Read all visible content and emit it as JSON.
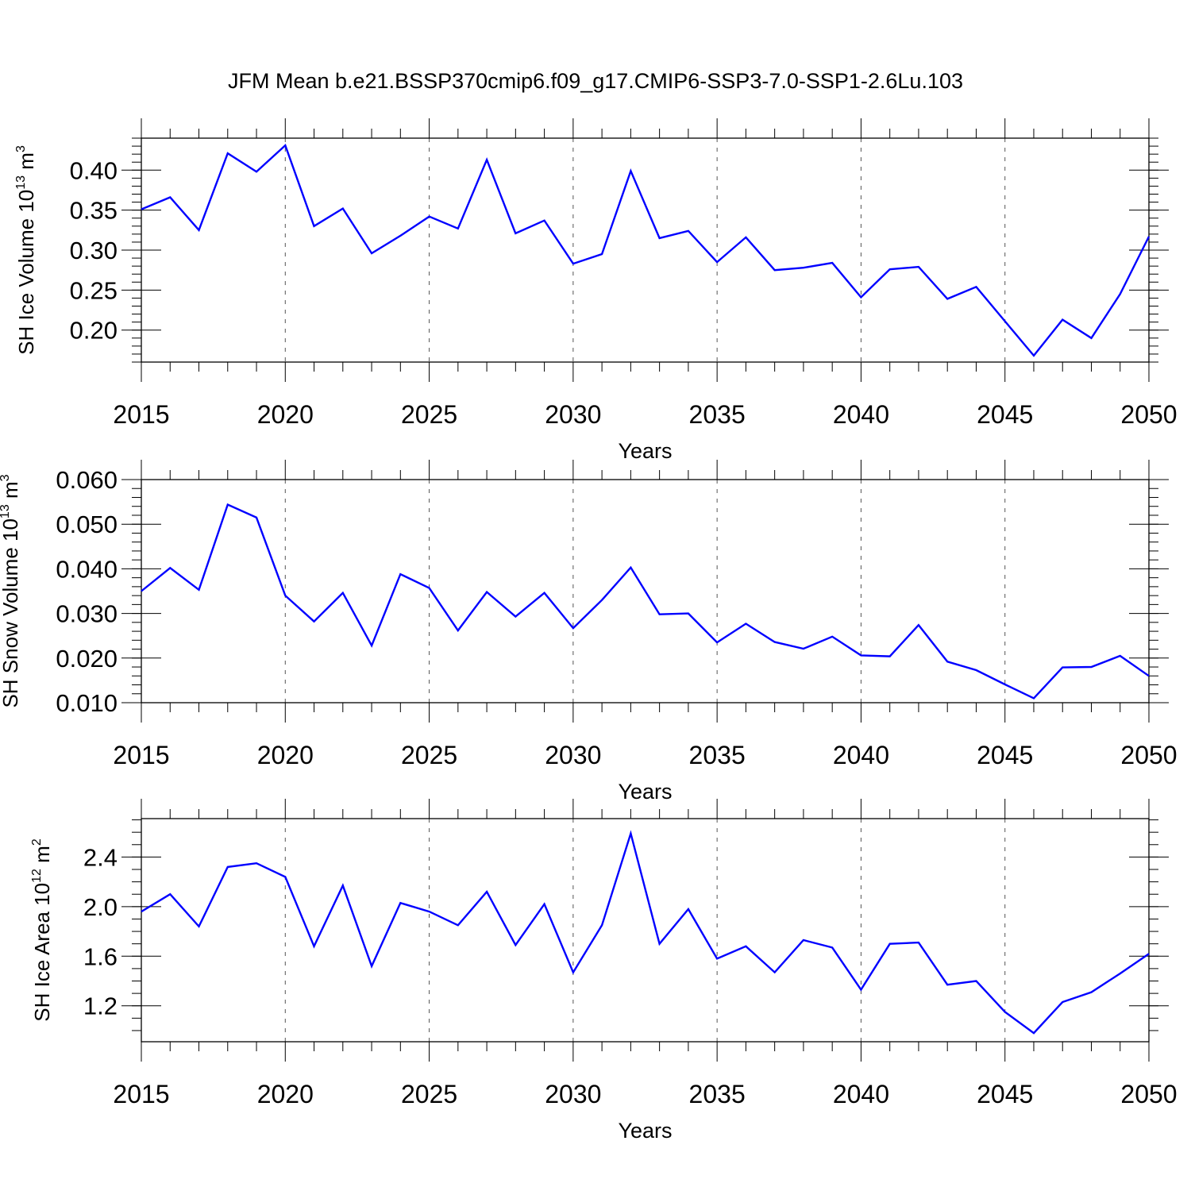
{
  "title": "JFM Mean b.e21.BSSP370cmip6.f09_g17.CMIP6-SSP3-7.0-SSP1-2.6Lu.103",
  "chart_data": [
    {
      "type": "line",
      "ylabel_main": "SH Ice Volume 10",
      "ylabel_exp": "13",
      "ylabel_unit": " m",
      "ylabel_unit_exp": "3",
      "xlabel": "Years",
      "xlim": [
        2015,
        2050
      ],
      "ylim": [
        0.16,
        0.44
      ],
      "yticks": [
        0.2,
        0.25,
        0.3,
        0.35,
        0.4
      ],
      "ytick_labels": [
        "0.20",
        "0.25",
        "0.30",
        "0.35",
        "0.40"
      ],
      "yminor_step": 0.01,
      "xticks": [
        2015,
        2020,
        2025,
        2030,
        2035,
        2040,
        2045,
        2050
      ],
      "xtick_labels": [
        "2015",
        "2020",
        "2025",
        "2030",
        "2035",
        "2040",
        "2045",
        "2050"
      ],
      "x": [
        2015,
        2016,
        2017,
        2018,
        2019,
        2020,
        2021,
        2022,
        2023,
        2024,
        2025,
        2026,
        2027,
        2028,
        2029,
        2030,
        2031,
        2032,
        2033,
        2034,
        2035,
        2036,
        2037,
        2038,
        2039,
        2040,
        2041,
        2042,
        2043,
        2044,
        2045,
        2046,
        2047,
        2048,
        2049,
        2050
      ],
      "values": [
        0.351,
        0.366,
        0.325,
        0.421,
        0.398,
        0.431,
        0.33,
        0.352,
        0.296,
        0.318,
        0.342,
        0.327,
        0.413,
        0.321,
        0.337,
        0.283,
        0.295,
        0.399,
        0.315,
        0.324,
        0.285,
        0.316,
        0.275,
        0.278,
        0.284,
        0.241,
        0.276,
        0.279,
        0.239,
        0.254,
        0.211,
        0.168,
        0.213,
        0.19,
        0.245,
        0.317
      ],
      "color": "#0000ff"
    },
    {
      "type": "line",
      "ylabel_main": "SH Snow Volume 10",
      "ylabel_exp": "13",
      "ylabel_unit": " m",
      "ylabel_unit_exp": "3",
      "xlabel": "Years",
      "xlim": [
        2015,
        2050
      ],
      "ylim": [
        0.01,
        0.06
      ],
      "yticks": [
        0.01,
        0.02,
        0.03,
        0.04,
        0.05,
        0.06
      ],
      "ytick_labels": [
        "0.010",
        "0.020",
        "0.030",
        "0.040",
        "0.050",
        "0.060"
      ],
      "yminor_step": 0.002,
      "xticks": [
        2015,
        2020,
        2025,
        2030,
        2035,
        2040,
        2045,
        2050
      ],
      "xtick_labels": [
        "2015",
        "2020",
        "2025",
        "2030",
        "2035",
        "2040",
        "2045",
        "2050"
      ],
      "x": [
        2015,
        2016,
        2017,
        2018,
        2019,
        2020,
        2021,
        2022,
        2023,
        2024,
        2025,
        2026,
        2027,
        2028,
        2029,
        2030,
        2031,
        2032,
        2033,
        2034,
        2035,
        2036,
        2037,
        2038,
        2039,
        2040,
        2041,
        2042,
        2043,
        2044,
        2045,
        2046,
        2047,
        2048,
        2049,
        2050
      ],
      "values": [
        0.035,
        0.0402,
        0.0353,
        0.0544,
        0.0515,
        0.034,
        0.0282,
        0.0346,
        0.0228,
        0.0388,
        0.0357,
        0.0262,
        0.0348,
        0.0293,
        0.0346,
        0.0267,
        0.033,
        0.0403,
        0.0298,
        0.03,
        0.0235,
        0.0277,
        0.0236,
        0.0221,
        0.0248,
        0.0206,
        0.0204,
        0.0274,
        0.0192,
        0.0173,
        0.0141,
        0.011,
        0.0179,
        0.018,
        0.0205,
        0.016
      ],
      "color": "#0000ff"
    },
    {
      "type": "line",
      "ylabel_main": "SH Ice Area 10",
      "ylabel_exp": "12",
      "ylabel_unit": " m",
      "ylabel_unit_exp": "2",
      "xlabel": "Years",
      "xlim": [
        2015,
        2050
      ],
      "ylim": [
        0.91,
        2.71
      ],
      "yticks": [
        1.2,
        1.6,
        2.0,
        2.4
      ],
      "ytick_labels": [
        "1.2",
        "1.6",
        "2.0",
        "2.4"
      ],
      "yminor_step": 0.1,
      "xticks": [
        2015,
        2020,
        2025,
        2030,
        2035,
        2040,
        2045,
        2050
      ],
      "xtick_labels": [
        "2015",
        "2020",
        "2025",
        "2030",
        "2035",
        "2040",
        "2045",
        "2050"
      ],
      "x": [
        2015,
        2016,
        2017,
        2018,
        2019,
        2020,
        2021,
        2022,
        2023,
        2024,
        2025,
        2026,
        2027,
        2028,
        2029,
        2030,
        2031,
        2032,
        2033,
        2034,
        2035,
        2036,
        2037,
        2038,
        2039,
        2040,
        2041,
        2042,
        2043,
        2044,
        2045,
        2046,
        2047,
        2048,
        2049,
        2050
      ],
      "values": [
        1.96,
        2.1,
        1.84,
        2.32,
        2.35,
        2.24,
        1.68,
        2.17,
        1.52,
        2.03,
        1.96,
        1.85,
        2.12,
        1.69,
        2.02,
        1.47,
        1.85,
        2.59,
        1.7,
        1.98,
        1.58,
        1.68,
        1.47,
        1.73,
        1.67,
        1.33,
        1.7,
        1.71,
        1.37,
        1.4,
        1.15,
        0.98,
        1.23,
        1.31,
        1.46,
        1.62
      ],
      "color": "#0000ff"
    }
  ]
}
